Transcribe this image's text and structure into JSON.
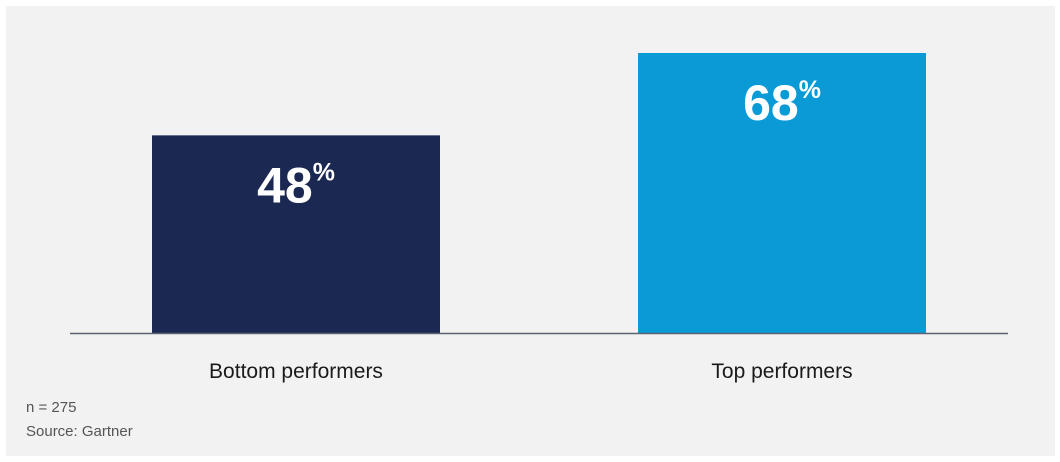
{
  "chart_data": {
    "type": "bar",
    "categories": [
      "Bottom performers",
      "Top performers"
    ],
    "values": [
      48,
      68
    ],
    "value_labels": [
      "48",
      "68"
    ],
    "value_suffix": "%",
    "colors": [
      "#1b2852",
      "#0a9bd7"
    ],
    "ylim": [
      0,
      68
    ],
    "grid": false,
    "legend": "none",
    "title": "",
    "xlabel": "",
    "ylabel": ""
  },
  "footnotes": {
    "sample": "n = 275",
    "source": "Source: Gartner"
  },
  "style": {
    "background": "#f2f2f2",
    "baseline_color": "#5a6470",
    "label_color": "#ffffff",
    "category_label_color": "#1a1a1a"
  }
}
